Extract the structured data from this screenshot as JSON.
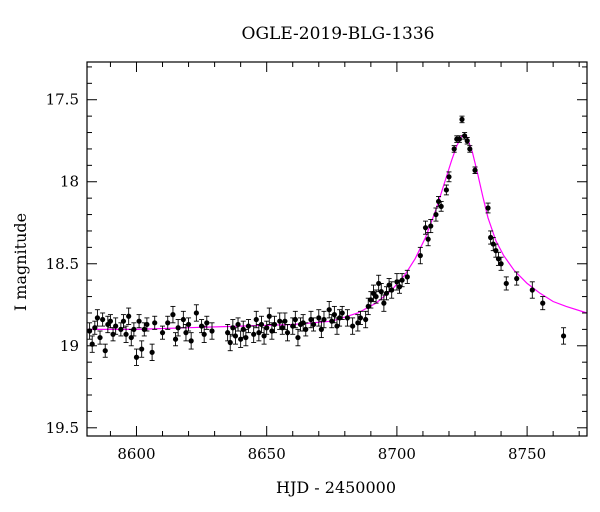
{
  "chart_data": {
    "type": "scatter",
    "title": "OGLE-2019-BLG-1336",
    "xlabel": "HJD - 2450000",
    "ylabel": "I magnitude",
    "xlim": [
      8581,
      8773
    ],
    "ylim": [
      19.55,
      17.27
    ],
    "y_inverted": true,
    "x_ticks": [
      8600,
      8650,
      8700,
      8750
    ],
    "x_tick_labels": [
      "8600",
      "8650",
      "8700",
      "8750"
    ],
    "y_ticks": [
      17.5,
      18,
      18.5,
      19,
      19.5
    ],
    "y_tick_labels": [
      "17.5",
      "18",
      "18.5",
      "19",
      "19.5"
    ],
    "grid": false,
    "colors": {
      "data": "#000000",
      "model": "#ff00ff",
      "axes": "#000000"
    },
    "series": [
      {
        "kind": "observations_with_error_bars",
        "points": [
          [
            8582,
            18.91,
            0.05
          ],
          [
            8583,
            18.99,
            0.05
          ],
          [
            8584,
            18.89,
            0.04
          ],
          [
            8585,
            18.83,
            0.05
          ],
          [
            8586,
            18.95,
            0.04
          ],
          [
            8587,
            18.84,
            0.04
          ],
          [
            8588,
            19.03,
            0.04
          ],
          [
            8589,
            18.87,
            0.05
          ],
          [
            8590,
            18.85,
            0.04
          ],
          [
            8591,
            18.93,
            0.04
          ],
          [
            8592,
            18.88,
            0.05
          ],
          [
            8594,
            18.9,
            0.04
          ],
          [
            8595,
            18.85,
            0.04
          ],
          [
            8596,
            18.93,
            0.05
          ],
          [
            8597,
            18.82,
            0.05
          ],
          [
            8598,
            18.95,
            0.05
          ],
          [
            8599,
            18.9,
            0.04
          ],
          [
            8600,
            19.07,
            0.05
          ],
          [
            8601,
            18.85,
            0.04
          ],
          [
            8602,
            19.02,
            0.05
          ],
          [
            8603,
            18.9,
            0.04
          ],
          [
            8604,
            18.87,
            0.04
          ],
          [
            8606,
            19.04,
            0.05
          ],
          [
            8607,
            18.86,
            0.04
          ],
          [
            8610,
            18.92,
            0.04
          ],
          [
            8612,
            18.86,
            0.04
          ],
          [
            8614,
            18.81,
            0.05
          ],
          [
            8615,
            18.96,
            0.04
          ],
          [
            8616,
            18.89,
            0.05
          ],
          [
            8618,
            18.84,
            0.05
          ],
          [
            8619,
            18.92,
            0.05
          ],
          [
            8620,
            18.87,
            0.04
          ],
          [
            8621,
            18.97,
            0.05
          ],
          [
            8623,
            18.8,
            0.05
          ],
          [
            8625,
            18.88,
            0.04
          ],
          [
            8626,
            18.93,
            0.05
          ],
          [
            8627,
            18.86,
            0.04
          ],
          [
            8629,
            18.91,
            0.05
          ],
          [
            8635,
            18.92,
            0.05
          ],
          [
            8636,
            18.98,
            0.05
          ],
          [
            8637,
            18.89,
            0.05
          ],
          [
            8638,
            18.94,
            0.05
          ],
          [
            8639,
            18.87,
            0.04
          ],
          [
            8640,
            18.96,
            0.05
          ],
          [
            8641,
            18.9,
            0.05
          ],
          [
            8642,
            18.95,
            0.05
          ],
          [
            8643,
            18.88,
            0.04
          ],
          [
            8645,
            18.93,
            0.05
          ],
          [
            8646,
            18.84,
            0.05
          ],
          [
            8647,
            18.92,
            0.05
          ],
          [
            8648,
            18.87,
            0.05
          ],
          [
            8649,
            18.94,
            0.05
          ],
          [
            8650,
            18.89,
            0.04
          ],
          [
            8651,
            18.82,
            0.05
          ],
          [
            8652,
            18.91,
            0.05
          ],
          [
            8653,
            18.87,
            0.05
          ],
          [
            8655,
            18.85,
            0.05
          ],
          [
            8656,
            18.89,
            0.04
          ],
          [
            8657,
            18.85,
            0.05
          ],
          [
            8658,
            18.92,
            0.05
          ],
          [
            8660,
            18.88,
            0.05
          ],
          [
            8661,
            18.84,
            0.05
          ],
          [
            8662,
            18.95,
            0.05
          ],
          [
            8663,
            18.87,
            0.04
          ],
          [
            8664,
            18.86,
            0.05
          ],
          [
            8665,
            18.9,
            0.04
          ],
          [
            8667,
            18.84,
            0.05
          ],
          [
            8668,
            18.87,
            0.04
          ],
          [
            8670,
            18.83,
            0.05
          ],
          [
            8671,
            18.9,
            0.05
          ],
          [
            8672,
            18.84,
            0.05
          ],
          [
            8674,
            18.78,
            0.05
          ],
          [
            8675,
            18.85,
            0.04
          ],
          [
            8676,
            18.81,
            0.05
          ],
          [
            8677,
            18.88,
            0.05
          ],
          [
            8678,
            18.83,
            0.05
          ],
          [
            8679,
            18.8,
            0.04
          ],
          [
            8681,
            18.83,
            0.05
          ],
          [
            8683,
            18.88,
            0.05
          ],
          [
            8685,
            18.86,
            0.05
          ],
          [
            8686,
            18.83,
            0.04
          ],
          [
            8688,
            18.84,
            0.05
          ],
          [
            8689,
            18.76,
            0.05
          ],
          [
            8690,
            18.72,
            0.05
          ],
          [
            8691,
            18.68,
            0.05
          ],
          [
            8692,
            18.7,
            0.04
          ],
          [
            8693,
            18.62,
            0.05
          ],
          [
            8694,
            18.67,
            0.05
          ],
          [
            8695,
            18.74,
            0.05
          ],
          [
            8696,
            18.68,
            0.04
          ],
          [
            8697,
            18.63,
            0.04
          ],
          [
            8698,
            18.66,
            0.05
          ],
          [
            8700,
            18.61,
            0.05
          ],
          [
            8701,
            18.64,
            0.04
          ],
          [
            8702,
            18.6,
            0.04
          ],
          [
            8704,
            18.58,
            0.04
          ],
          [
            8709,
            18.45,
            0.05
          ],
          [
            8711,
            18.28,
            0.04
          ],
          [
            8712,
            18.35,
            0.04
          ],
          [
            8713,
            18.27,
            0.04
          ],
          [
            8715,
            18.2,
            0.04
          ],
          [
            8716,
            18.12,
            0.03
          ],
          [
            8717,
            18.15,
            0.03
          ],
          [
            8719,
            18.05,
            0.03
          ],
          [
            8720,
            17.97,
            0.03
          ],
          [
            8722,
            17.8,
            0.02
          ],
          [
            8723,
            17.74,
            0.02
          ],
          [
            8724,
            17.74,
            0.02
          ],
          [
            8725,
            17.62,
            0.02
          ],
          [
            8726,
            17.72,
            0.02
          ],
          [
            8727,
            17.75,
            0.02
          ],
          [
            8728,
            17.8,
            0.02
          ],
          [
            8730,
            17.93,
            0.02
          ],
          [
            8735,
            18.16,
            0.03
          ],
          [
            8736,
            18.34,
            0.04
          ],
          [
            8737,
            18.38,
            0.04
          ],
          [
            8738,
            18.42,
            0.04
          ],
          [
            8739,
            18.47,
            0.04
          ],
          [
            8740,
            18.5,
            0.04
          ],
          [
            8742,
            18.62,
            0.04
          ],
          [
            8746,
            18.59,
            0.04
          ],
          [
            8752,
            18.66,
            0.05
          ],
          [
            8756,
            18.74,
            0.04
          ],
          [
            8764,
            18.94,
            0.05
          ]
        ]
      },
      {
        "kind": "model_curve",
        "points": [
          [
            8581,
            18.9
          ],
          [
            8600,
            18.9
          ],
          [
            8620,
            18.89
          ],
          [
            8640,
            18.88
          ],
          [
            8660,
            18.87
          ],
          [
            8675,
            18.85
          ],
          [
            8685,
            18.8
          ],
          [
            8692,
            18.74
          ],
          [
            8698,
            18.66
          ],
          [
            8703,
            18.57
          ],
          [
            8707,
            18.47
          ],
          [
            8711,
            18.34
          ],
          [
            8715,
            18.17
          ],
          [
            8718,
            18.02
          ],
          [
            8721,
            17.87
          ],
          [
            8723,
            17.78
          ],
          [
            8725,
            17.72
          ],
          [
            8726,
            17.71
          ],
          [
            8727,
            17.73
          ],
          [
            8729,
            17.82
          ],
          [
            8731,
            17.95
          ],
          [
            8733,
            18.09
          ],
          [
            8735,
            18.22
          ],
          [
            8738,
            18.36
          ],
          [
            8741,
            18.45
          ],
          [
            8745,
            18.54
          ],
          [
            8750,
            18.62
          ],
          [
            8755,
            18.68
          ],
          [
            8760,
            18.73
          ],
          [
            8765,
            18.76
          ],
          [
            8773,
            18.8
          ]
        ]
      }
    ]
  }
}
